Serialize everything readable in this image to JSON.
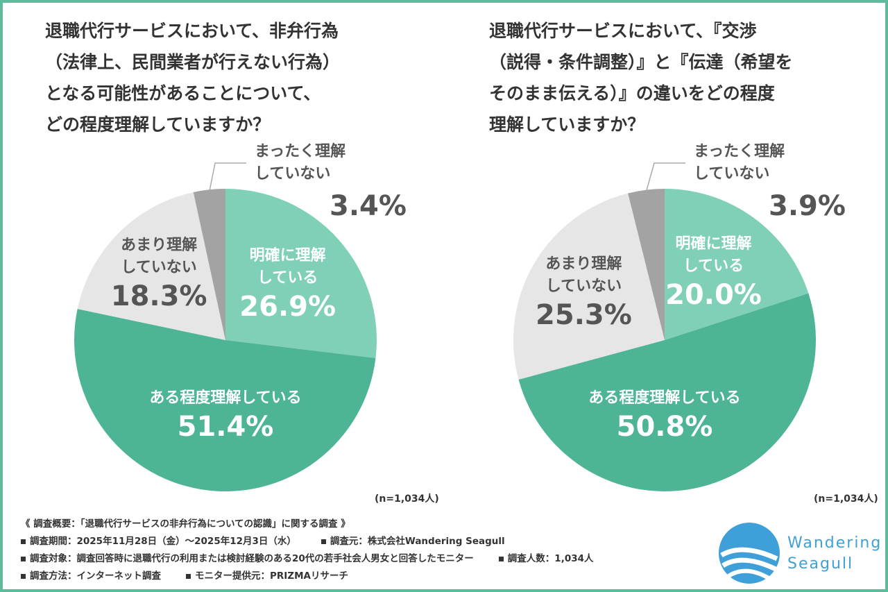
{
  "chart_data": [
    {
      "type": "pie",
      "title": "退職代行サービスにおいて、非弁行為\n（法律上、民間業者が行えない行為）\nとなる可能性があることについて、\nどの程度理解していますか？",
      "categories": [
        "明確に理解\nしている",
        "ある程度理解している",
        "あまり理解\nしていない",
        "まったく理解\nしていない"
      ],
      "values": [
        26.9,
        51.4,
        18.3,
        3.4
      ],
      "value_labels": [
        "26.9%",
        "51.4%",
        "18.3%",
        "3.4%"
      ],
      "colors": [
        "#7fd0b6",
        "#4db596",
        "#e6e6e6",
        "#a3a3a3"
      ],
      "label_colors": [
        "#ffffff",
        "#ffffff",
        "#555555",
        "#555555"
      ],
      "note": "(n=1,034人)"
    },
    {
      "type": "pie",
      "title": "退職代行サービスにおいて、『交渉\n（説得・条件調整）』と『伝達（希望を\nそのまま伝える）』の違いをどの程度\n理解していますか？",
      "categories": [
        "明確に理解\nしている",
        "ある程度理解している",
        "あまり理解\nしていない",
        "まったく理解\nしていない"
      ],
      "values": [
        20.0,
        50.8,
        25.3,
        3.9
      ],
      "value_labels": [
        "20.0%",
        "50.8%",
        "25.3%",
        "3.9%"
      ],
      "colors": [
        "#7fd0b6",
        "#4db596",
        "#e6e6e6",
        "#a3a3a3"
      ],
      "label_colors": [
        "#ffffff",
        "#ffffff",
        "#555555",
        "#555555"
      ],
      "note": "(n=1,034人)"
    }
  ],
  "footer": {
    "heading": "《 調査概要：「退職代行サービスの非弁行為についての認識」に関する調査 》",
    "rows": [
      [
        "調査期間：2025年11月28日（金）～2025年12月3日（水）",
        "調査元：株式会社Wandering Seagull"
      ],
      [
        "調査対象：調査回答時に退職代行の利用または検討経験のある20代の若手社会人男女と回答したモニター",
        "調査人数：1,034人"
      ],
      [
        "調査方法：インターネット調査",
        "モニター提供元：PRIZMAリサーチ"
      ]
    ],
    "logo": "Wandering\nSeagull"
  }
}
